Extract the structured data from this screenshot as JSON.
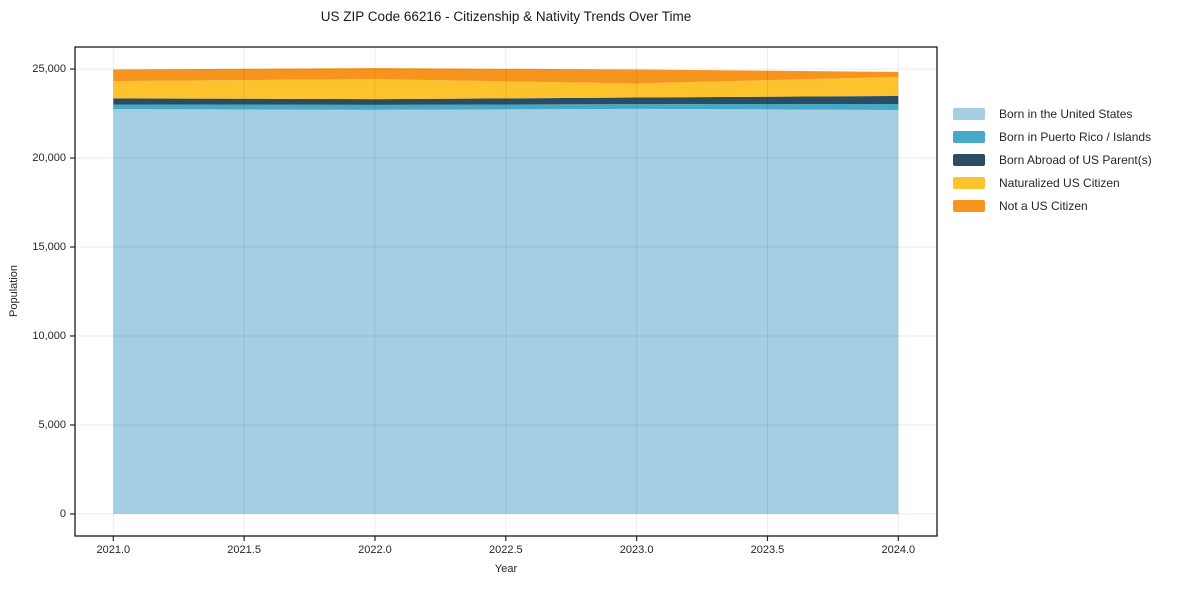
{
  "title": "US ZIP Code 66216 - Citizenship & Nativity Trends Over Time",
  "chart_data": {
    "type": "area",
    "stacked": true,
    "title": "US ZIP Code 66216 - Citizenship & Nativity Trends Over Time",
    "xlabel": "Year",
    "ylabel": "Population",
    "x": [
      2021,
      2022,
      2023,
      2024
    ],
    "series": [
      {
        "name": "Born in the United States",
        "color": "#a6cee3",
        "values": [
          22750,
          22710,
          22765,
          22700
        ]
      },
      {
        "name": "Born in Puerto Rico / Islands",
        "color": "#46aac6",
        "values": [
          260,
          280,
          265,
          340
        ]
      },
      {
        "name": "Born Abroad of US Parent(s)",
        "color": "#2b4d63",
        "values": [
          340,
          320,
          370,
          450
        ]
      },
      {
        "name": "Naturalized US Citizen",
        "color": "#fcc32d",
        "values": [
          975,
          1125,
          790,
          1070
        ]
      },
      {
        "name": "Not a US Citizen",
        "color": "#f7941e",
        "values": [
          650,
          620,
          785,
          280
        ]
      }
    ],
    "stack_totals": [
      24975,
      25055,
      24975,
      24840
    ],
    "xlim": [
      2020.8536,
      2024.1479
    ],
    "ylim": [
      -1240,
      26240
    ],
    "xticks": [
      2021.0,
      2021.5,
      2022.0,
      2022.5,
      2023.0,
      2023.5,
      2024.0
    ],
    "xtick_labels": [
      "2021.0",
      "2021.5",
      "2022.0",
      "2022.5",
      "2023.0",
      "2023.5",
      "2024.0"
    ],
    "yticks": [
      0,
      5000,
      10000,
      15000,
      20000,
      25000
    ],
    "ytick_labels": [
      "0",
      "5,000",
      "10,000",
      "15,000",
      "20,000",
      "25,000"
    ],
    "grid": true,
    "grid_color": "rgba(0,0,0,0.08)",
    "spine_color": "#1a1a1a",
    "legend_position": "right"
  }
}
